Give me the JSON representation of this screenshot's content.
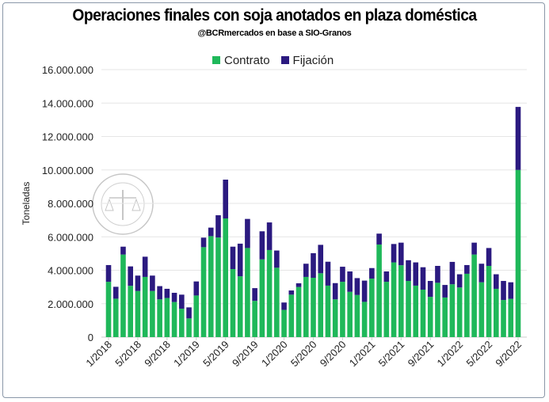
{
  "chart_data": {
    "type": "bar",
    "stacked": true,
    "title": "Operaciones finales con soja anotados en plaza doméstica",
    "subtitle": "@BCRmercados en base a SIO-Granos",
    "xlabel": "",
    "ylabel": "Toneladas",
    "ylim": [
      0,
      16000000
    ],
    "yticks": [
      "0",
      "2.000.000",
      "4.000.000",
      "6.000.000",
      "8.000.000",
      "10.000.000",
      "12.000.000",
      "14.000.000",
      "16.000.000"
    ],
    "grid": true,
    "legend_position": "top",
    "categories": [
      "1/2018",
      "2/2018",
      "3/2018",
      "4/2018",
      "5/2018",
      "6/2018",
      "7/2018",
      "8/2018",
      "9/2018",
      "10/2018",
      "11/2018",
      "12/2018",
      "1/2019",
      "2/2019",
      "3/2019",
      "4/2019",
      "5/2019",
      "6/2019",
      "7/2019",
      "8/2019",
      "9/2019",
      "10/2019",
      "11/2019",
      "12/2019",
      "1/2020",
      "2/2020",
      "3/2020",
      "4/2020",
      "5/2020",
      "6/2020",
      "7/2020",
      "8/2020",
      "9/2020",
      "10/2020",
      "11/2020",
      "12/2020",
      "1/2021",
      "2/2021",
      "3/2021",
      "4/2021",
      "5/2021",
      "6/2021",
      "7/2021",
      "8/2021",
      "9/2021",
      "10/2021",
      "11/2021",
      "12/2021",
      "1/2022",
      "2/2022",
      "3/2022",
      "4/2022",
      "5/2022",
      "6/2022",
      "7/2022",
      "8/2022",
      "9/2022"
    ],
    "xtick_labels": [
      "1/2018",
      "5/2018",
      "9/2018",
      "1/2019",
      "5/2019",
      "9/2019",
      "1/2020",
      "5/2020",
      "9/2020",
      "1/2021",
      "5/2021",
      "9/2021",
      "1/2022",
      "5/2022",
      "9/2022"
    ],
    "series": [
      {
        "name": "Contrato",
        "color": "#1fb85a",
        "values": [
          3310000,
          2300000,
          4940000,
          3070000,
          2760000,
          3600000,
          2760000,
          2260000,
          2340000,
          2100000,
          1700000,
          1120000,
          2490000,
          5380000,
          6040000,
          5960000,
          7100000,
          4070000,
          3640000,
          5330000,
          2170000,
          4650000,
          5210000,
          4150000,
          1630000,
          2540000,
          3000000,
          3600000,
          3550000,
          3820000,
          3080000,
          2260000,
          3310000,
          2710000,
          2520000,
          2110000,
          3500000,
          5540000,
          3310000,
          4470000,
          4300000,
          3360000,
          3080000,
          2840000,
          2410000,
          3250000,
          2370000,
          3160000,
          2970000,
          3790000,
          4940000,
          3280000,
          4260000,
          2890000,
          2220000,
          2290000,
          10000000
        ]
      },
      {
        "name": "Fijación",
        "color": "#2b1a80",
        "values": [
          1000000,
          710000,
          470000,
          1160000,
          920000,
          1210000,
          920000,
          790000,
          550000,
          550000,
          840000,
          660000,
          840000,
          570000,
          510000,
          1330000,
          2320000,
          1340000,
          1950000,
          1740000,
          760000,
          1680000,
          1650000,
          1030000,
          440000,
          250000,
          220000,
          790000,
          1470000,
          1700000,
          1430000,
          970000,
          900000,
          1220000,
          1010000,
          1270000,
          630000,
          650000,
          620000,
          1100000,
          1350000,
          1240000,
          1390000,
          1340000,
          950000,
          1010000,
          750000,
          1340000,
          790000,
          520000,
          710000,
          1110000,
          1070000,
          870000,
          1140000,
          990000,
          3770000
        ]
      }
    ]
  }
}
